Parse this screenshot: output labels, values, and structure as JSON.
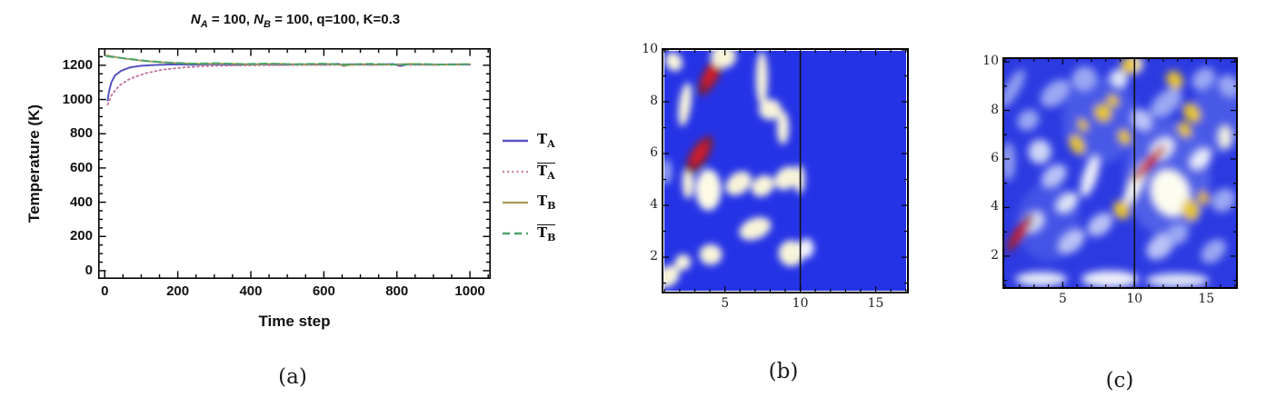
{
  "figure": {
    "captions": {
      "a": "(a)",
      "b": "(b)",
      "c": "(c)"
    }
  },
  "panel_a": {
    "title": {
      "n1": "N",
      "s1": "A",
      "t1": " = 100, ",
      "n2": "N",
      "s2": "B",
      "t2": " = 100, q=100, K=0.3"
    },
    "xlabel": "Time step",
    "ylabel": "Temperature (K)",
    "legend": [
      {
        "base": "T",
        "sub": "A",
        "overline": false
      },
      {
        "base": "T",
        "sub": "A",
        "overline": true
      },
      {
        "base": "T",
        "sub": "B",
        "overline": false
      },
      {
        "base": "T",
        "sub": "B",
        "overline": true
      }
    ]
  },
  "chart_data": [
    {
      "type": "line",
      "panel": "a",
      "title": "N_A = 100, N_B = 100, q=100, K=0.3",
      "xlabel": "Time step",
      "ylabel": "Temperature (K)",
      "xlim": [
        -18,
        1057
      ],
      "ylim": [
        -48,
        1300
      ],
      "xticks": [
        0,
        200,
        400,
        600,
        800,
        1000
      ],
      "yticks": [
        0,
        200,
        400,
        600,
        800,
        1000,
        1200
      ],
      "minor_step": 50,
      "grid": false,
      "legend_position": "right",
      "series": [
        {
          "name": "T_A",
          "color": "#5553c0",
          "style": "solid",
          "width": 2,
          "points": [
            [
              8,
              995
            ],
            [
              12,
              1050
            ],
            [
              18,
              1100
            ],
            [
              28,
              1140
            ],
            [
              45,
              1168
            ],
            [
              70,
              1188
            ],
            [
              100,
              1197
            ],
            [
              140,
              1202
            ],
            [
              190,
              1205
            ],
            [
              240,
              1203
            ],
            [
              300,
              1206
            ],
            [
              360,
              1202
            ],
            [
              420,
              1206
            ],
            [
              480,
              1203
            ],
            [
              540,
              1206
            ],
            [
              600,
              1204
            ],
            [
              640,
              1208
            ],
            [
              655,
              1196
            ],
            [
              670,
              1206
            ],
            [
              730,
              1203
            ],
            [
              790,
              1207
            ],
            [
              810,
              1196
            ],
            [
              830,
              1206
            ],
            [
              900,
              1203
            ],
            [
              950,
              1206
            ],
            [
              1000,
              1204
            ]
          ]
        },
        {
          "name": "T_A_bar",
          "color": "#c4709c",
          "style": "dotted",
          "width": 1.8,
          "points": [
            [
              8,
              970
            ],
            [
              20,
              1030
            ],
            [
              40,
              1082
            ],
            [
              70,
              1122
            ],
            [
              110,
              1152
            ],
            [
              160,
              1175
            ],
            [
              220,
              1188
            ],
            [
              290,
              1196
            ],
            [
              380,
              1199
            ],
            [
              500,
              1201
            ],
            [
              650,
              1202
            ],
            [
              800,
              1202
            ],
            [
              1000,
              1203
            ]
          ]
        },
        {
          "name": "T_B",
          "color": "#a79b50",
          "style": "solid",
          "width": 1.8,
          "points": [
            [
              5,
              1258
            ],
            [
              40,
              1244
            ],
            [
              90,
              1229
            ],
            [
              150,
              1218
            ],
            [
              210,
              1212
            ],
            [
              270,
              1208
            ],
            [
              330,
              1210
            ],
            [
              400,
              1206
            ],
            [
              470,
              1209
            ],
            [
              540,
              1205
            ],
            [
              610,
              1208
            ],
            [
              660,
              1199
            ],
            [
              700,
              1207
            ],
            [
              770,
              1204
            ],
            [
              840,
              1208
            ],
            [
              910,
              1204
            ],
            [
              1000,
              1207
            ]
          ]
        },
        {
          "name": "T_B_bar",
          "color": "#4ca36b",
          "style": "dashed",
          "width": 2,
          "points": [
            [
              5,
              1253
            ],
            [
              60,
              1239
            ],
            [
              120,
              1224
            ],
            [
              180,
              1215
            ],
            [
              240,
              1210
            ],
            [
              310,
              1212
            ],
            [
              380,
              1207
            ],
            [
              450,
              1210
            ],
            [
              520,
              1206
            ],
            [
              590,
              1209
            ],
            [
              660,
              1205
            ],
            [
              730,
              1208
            ],
            [
              800,
              1204
            ],
            [
              870,
              1207
            ],
            [
              940,
              1204
            ],
            [
              1000,
              1206
            ]
          ]
        }
      ]
    },
    {
      "type": "heatmap",
      "panel": "b",
      "xlim": [
        0.8,
        17.2
      ],
      "ylim": [
        0.6,
        10.07
      ],
      "xticks": [
        5,
        10,
        15
      ],
      "yticks": [
        2,
        4,
        6,
        8,
        10
      ],
      "minor_step": 1,
      "background": "#2533e6",
      "vline_x": 10,
      "vline_color": "#111111",
      "blur": 4,
      "blobs": [
        {
          "x": 1.2,
          "y": 1.25,
          "rx": 0.85,
          "ry": 0.38,
          "rot": -38,
          "c": "#f8f4da"
        },
        {
          "x": 2.2,
          "y": 1.8,
          "rx": 0.55,
          "ry": 0.3,
          "rot": -38,
          "c": "#f8f4da"
        },
        {
          "x": 4.05,
          "y": 2.1,
          "rx": 0.75,
          "ry": 0.4,
          "rot": 0,
          "c": "#f8f4da"
        },
        {
          "x": 9.4,
          "y": 2.15,
          "rx": 0.85,
          "ry": 0.5,
          "rot": 0,
          "c": "#f8f4da"
        },
        {
          "x": 10.4,
          "y": 2.35,
          "rx": 0.5,
          "ry": 0.38,
          "rot": 0,
          "c": "#eef0fa"
        },
        {
          "x": 7.0,
          "y": 3.1,
          "rx": 1.1,
          "ry": 0.4,
          "rot": -22,
          "c": "#f8f4da"
        },
        {
          "x": 2.55,
          "y": 4.9,
          "rx": 0.38,
          "ry": 0.65,
          "rot": 0,
          "c": "#f8f4da"
        },
        {
          "x": 3.9,
          "y": 4.6,
          "rx": 0.85,
          "ry": 0.8,
          "rot": 0,
          "c": "#fdfae6"
        },
        {
          "x": 5.9,
          "y": 4.85,
          "rx": 0.95,
          "ry": 0.4,
          "rot": -38,
          "c": "#f8f4da"
        },
        {
          "x": 7.5,
          "y": 4.75,
          "rx": 0.8,
          "ry": 0.38,
          "rot": -38,
          "c": "#f8f4da"
        },
        {
          "x": 9.1,
          "y": 5.05,
          "rx": 0.9,
          "ry": 0.4,
          "rot": -38,
          "c": "#f8f4da"
        },
        {
          "x": 9.95,
          "y": 5.0,
          "rx": 0.35,
          "ry": 0.55,
          "rot": 0,
          "c": "#f8f4da"
        },
        {
          "x": 1.1,
          "y": 5.3,
          "rx": 0.4,
          "ry": 0.5,
          "rot": 0,
          "c": "#8e9cf0"
        },
        {
          "x": 3.3,
          "y": 5.95,
          "rx": 0.6,
          "ry": 0.85,
          "rot": 32,
          "c": "#7d2040"
        },
        {
          "x": 3.3,
          "y": 6.0,
          "rx": 0.3,
          "ry": 0.5,
          "rot": 32,
          "c": "#d41f26"
        },
        {
          "x": 8.85,
          "y": 7.0,
          "rx": 0.4,
          "ry": 0.65,
          "rot": 0,
          "c": "#f8f4da"
        },
        {
          "x": 8.0,
          "y": 7.7,
          "rx": 0.75,
          "ry": 0.4,
          "rot": 0,
          "c": "#f8f4da"
        },
        {
          "x": 2.35,
          "y": 7.9,
          "rx": 0.4,
          "ry": 0.85,
          "rot": 8,
          "c": "#f8f4da"
        },
        {
          "x": 7.45,
          "y": 8.9,
          "rx": 0.4,
          "ry": 1.05,
          "rot": 0,
          "c": "#f8f4da"
        },
        {
          "x": 4.05,
          "y": 9.0,
          "rx": 0.55,
          "ry": 0.85,
          "rot": 28,
          "c": "#7d2040"
        },
        {
          "x": 4.05,
          "y": 9.05,
          "rx": 0.3,
          "ry": 0.52,
          "rot": 28,
          "c": "#d41f26"
        },
        {
          "x": 1.6,
          "y": 9.55,
          "rx": 0.55,
          "ry": 0.38,
          "rot": -30,
          "c": "#f8f4da"
        },
        {
          "x": 4.9,
          "y": 9.75,
          "rx": 0.85,
          "ry": 0.45,
          "rot": 0,
          "c": "#f8f4da"
        }
      ]
    },
    {
      "type": "heatmap",
      "panel": "c",
      "xlim": [
        0.8,
        17.2
      ],
      "ylim": [
        0.65,
        10.19
      ],
      "xticks": [
        5,
        10,
        15
      ],
      "yticks": [
        2,
        4,
        6,
        8,
        10
      ],
      "minor_step": 1,
      "background": "#2c3ae2",
      "vline_x": 10,
      "vline_color": "#111111",
      "blur": 4.5,
      "blobs": [
        {
          "x": 12.3,
          "y": 5.2,
          "rx": 3.0,
          "ry": 2.4,
          "rot": 0,
          "c": "#7386ee",
          "o": 0.5
        },
        {
          "x": 7.6,
          "y": 7.6,
          "rx": 2.6,
          "ry": 1.8,
          "rot": 0,
          "c": "#7386ee",
          "o": 0.4
        },
        {
          "x": 4.0,
          "y": 3.4,
          "rx": 2.2,
          "ry": 1.6,
          "rot": 0,
          "c": "#7386ee",
          "o": 0.35
        },
        {
          "x": 15.8,
          "y": 7.8,
          "rx": 1.8,
          "ry": 1.6,
          "rot": 0,
          "c": "#7386ee",
          "o": 0.4
        },
        {
          "x": 4.5,
          "y": 8.7,
          "rx": 1.2,
          "ry": 0.45,
          "rot": -40,
          "c": "#9aa7f3"
        },
        {
          "x": 2.6,
          "y": 7.6,
          "rx": 0.8,
          "ry": 0.4,
          "rot": -40,
          "c": "#9aa7f3"
        },
        {
          "x": 1.5,
          "y": 8.9,
          "rx": 0.5,
          "ry": 0.9,
          "rot": 30,
          "c": "#8e9cf0"
        },
        {
          "x": 6.5,
          "y": 9.3,
          "rx": 0.9,
          "ry": 0.5,
          "rot": -42,
          "c": "#9aa7f3"
        },
        {
          "x": 5.6,
          "y": 2.6,
          "rx": 1.1,
          "ry": 0.4,
          "rot": -40,
          "c": "#b9c2f6"
        },
        {
          "x": 7.6,
          "y": 3.3,
          "rx": 1.0,
          "ry": 0.4,
          "rot": -40,
          "c": "#b9c2f6"
        },
        {
          "x": 4.4,
          "y": 5.3,
          "rx": 1.0,
          "ry": 0.4,
          "rot": -40,
          "c": "#b9c2f6"
        },
        {
          "x": 12.2,
          "y": 8.3,
          "rx": 1.3,
          "ry": 0.45,
          "rot": -42,
          "c": "#9aa7f3"
        },
        {
          "x": 14.8,
          "y": 9.3,
          "rx": 0.9,
          "ry": 0.4,
          "rot": -42,
          "c": "#9aa7f3"
        },
        {
          "x": 16.2,
          "y": 4.3,
          "rx": 0.9,
          "ry": 0.45,
          "rot": -42,
          "c": "#9aa7f3"
        },
        {
          "x": 15.5,
          "y": 2.2,
          "rx": 1.0,
          "ry": 0.4,
          "rot": -42,
          "c": "#9aa7f3"
        },
        {
          "x": 11.8,
          "y": 2.4,
          "rx": 1.1,
          "ry": 0.45,
          "rot": -42,
          "c": "#b9c2f6"
        },
        {
          "x": 13.0,
          "y": 2.9,
          "rx": 0.8,
          "ry": 0.4,
          "rot": -42,
          "c": "#9aa7f3"
        },
        {
          "x": 10.5,
          "y": 7.6,
          "rx": 0.7,
          "ry": 0.5,
          "rot": -42,
          "c": "#b9c2f6"
        },
        {
          "x": 16.6,
          "y": 9.0,
          "rx": 0.7,
          "ry": 0.5,
          "rot": -35,
          "c": "#9aa7f3"
        },
        {
          "x": 1.2,
          "y": 5.9,
          "rx": 0.5,
          "ry": 0.8,
          "rot": 0,
          "c": "#8e9cf0"
        },
        {
          "x": 2.9,
          "y": 3.4,
          "rx": 0.9,
          "ry": 0.4,
          "rot": -40,
          "c": "#d5dbf6"
        },
        {
          "x": 3.4,
          "y": 6.3,
          "rx": 0.8,
          "ry": 0.5,
          "rot": 0,
          "c": "#cdd5f5"
        },
        {
          "x": 5.3,
          "y": 4.2,
          "rx": 0.9,
          "ry": 0.35,
          "rot": -40,
          "c": "#dde3f7"
        },
        {
          "x": 6.9,
          "y": 5.3,
          "rx": 0.5,
          "ry": 0.9,
          "rot": 18,
          "c": "#eceef8"
        },
        {
          "x": 10.1,
          "y": 5.0,
          "rx": 0.5,
          "ry": 1.1,
          "rot": 25,
          "c": "#f4f4ec"
        },
        {
          "x": 12.5,
          "y": 4.6,
          "rx": 1.35,
          "ry": 1.0,
          "rot": -20,
          "c": "#fdfcf0"
        },
        {
          "x": 11.9,
          "y": 6.4,
          "rx": 1.0,
          "ry": 0.4,
          "rot": -42,
          "c": "#f0f2fa"
        },
        {
          "x": 14.6,
          "y": 6.0,
          "rx": 0.9,
          "ry": 0.35,
          "rot": -45,
          "c": "#e8ecfa"
        },
        {
          "x": 9.9,
          "y": 9.9,
          "rx": 0.7,
          "ry": 0.4,
          "rot": 0,
          "c": "#f6edc8"
        },
        {
          "x": 16.3,
          "y": 6.9,
          "rx": 0.5,
          "ry": 0.5,
          "rot": 0,
          "c": "#f2f0e0"
        },
        {
          "x": 8.3,
          "y": 1.05,
          "rx": 2.0,
          "ry": 0.35,
          "rot": 0,
          "c": "#eef0fa"
        },
        {
          "x": 13.0,
          "y": 1.0,
          "rx": 2.2,
          "ry": 0.3,
          "rot": 0,
          "c": "#dfe4f8"
        },
        {
          "x": 3.5,
          "y": 1.05,
          "rx": 1.8,
          "ry": 0.3,
          "rot": 0,
          "c": "#e6eaf9"
        },
        {
          "x": 8.9,
          "y": 9.3,
          "rx": 0.6,
          "ry": 0.4,
          "rot": -40,
          "c": "#dfe4f8"
        },
        {
          "x": 9.6,
          "y": 9.85,
          "rx": 0.55,
          "ry": 0.35,
          "rot": 0,
          "c": "#e8c531"
        },
        {
          "x": 12.8,
          "y": 9.25,
          "rx": 0.55,
          "ry": 0.4,
          "rot": -35,
          "c": "#e8c531"
        },
        {
          "x": 7.8,
          "y": 7.9,
          "rx": 0.6,
          "ry": 0.4,
          "rot": -40,
          "c": "#e8c531"
        },
        {
          "x": 8.5,
          "y": 8.4,
          "rx": 0.4,
          "ry": 0.3,
          "rot": -40,
          "c": "#e8c531"
        },
        {
          "x": 14.0,
          "y": 7.9,
          "rx": 0.55,
          "ry": 0.45,
          "rot": -35,
          "c": "#e8c531"
        },
        {
          "x": 13.5,
          "y": 7.2,
          "rx": 0.45,
          "ry": 0.35,
          "rot": -35,
          "c": "#e8c531"
        },
        {
          "x": 6.0,
          "y": 6.6,
          "rx": 0.5,
          "ry": 0.45,
          "rot": -30,
          "c": "#e8c531"
        },
        {
          "x": 6.4,
          "y": 7.4,
          "rx": 0.35,
          "ry": 0.3,
          "rot": -30,
          "c": "#e8c531"
        },
        {
          "x": 9.3,
          "y": 6.9,
          "rx": 0.45,
          "ry": 0.35,
          "rot": -30,
          "c": "#e8c531"
        },
        {
          "x": 9.1,
          "y": 3.9,
          "rx": 0.55,
          "ry": 0.4,
          "rot": -30,
          "c": "#e8c531"
        },
        {
          "x": 13.9,
          "y": 3.9,
          "rx": 0.6,
          "ry": 0.45,
          "rot": -20,
          "c": "#e8c531"
        },
        {
          "x": 14.8,
          "y": 4.4,
          "rx": 0.4,
          "ry": 0.3,
          "rot": -20,
          "c": "#e0b82c"
        },
        {
          "x": 2.0,
          "y": 2.95,
          "rx": 0.38,
          "ry": 0.95,
          "rot": 35,
          "c": "#8d2038"
        },
        {
          "x": 2.0,
          "y": 2.95,
          "rx": 0.22,
          "ry": 0.55,
          "rot": 35,
          "c": "#d41f26"
        },
        {
          "x": 11.05,
          "y": 5.85,
          "rx": 0.32,
          "ry": 1.0,
          "rot": 42,
          "c": "#b51f28"
        },
        {
          "x": 11.05,
          "y": 5.85,
          "rx": 0.2,
          "ry": 0.6,
          "rot": 42,
          "c": "#d41f26"
        }
      ]
    }
  ]
}
